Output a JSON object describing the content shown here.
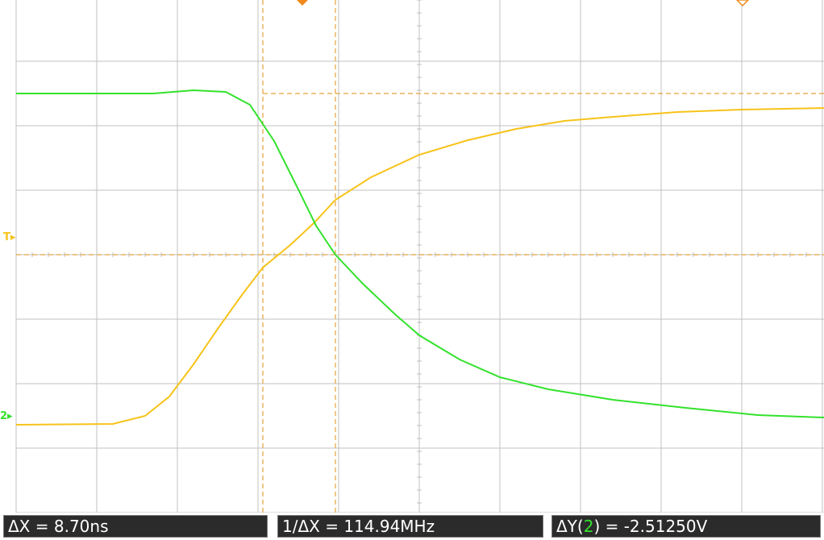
{
  "colors": {
    "background": "#ffffff",
    "grid": "#c0c0c0",
    "channel_1": "#f7c31a",
    "channel_2": "#33e22c",
    "cursor": "#e5a23a",
    "cursor_marker": "#f08a1a",
    "readout_bg": "#2b2b2b",
    "readout_text": "#ffffff"
  },
  "markers": {
    "trigger_level_label": "T",
    "channel_2_ground_label": "2"
  },
  "readouts": {
    "delta_x": "ΔX = 8.70ns",
    "inverse_delta_x": "1/ΔX = 114.94MHz",
    "delta_y_prefix": "ΔY(",
    "delta_y_channel": "2",
    "delta_y_suffix": ") = -2.51250V"
  }
}
